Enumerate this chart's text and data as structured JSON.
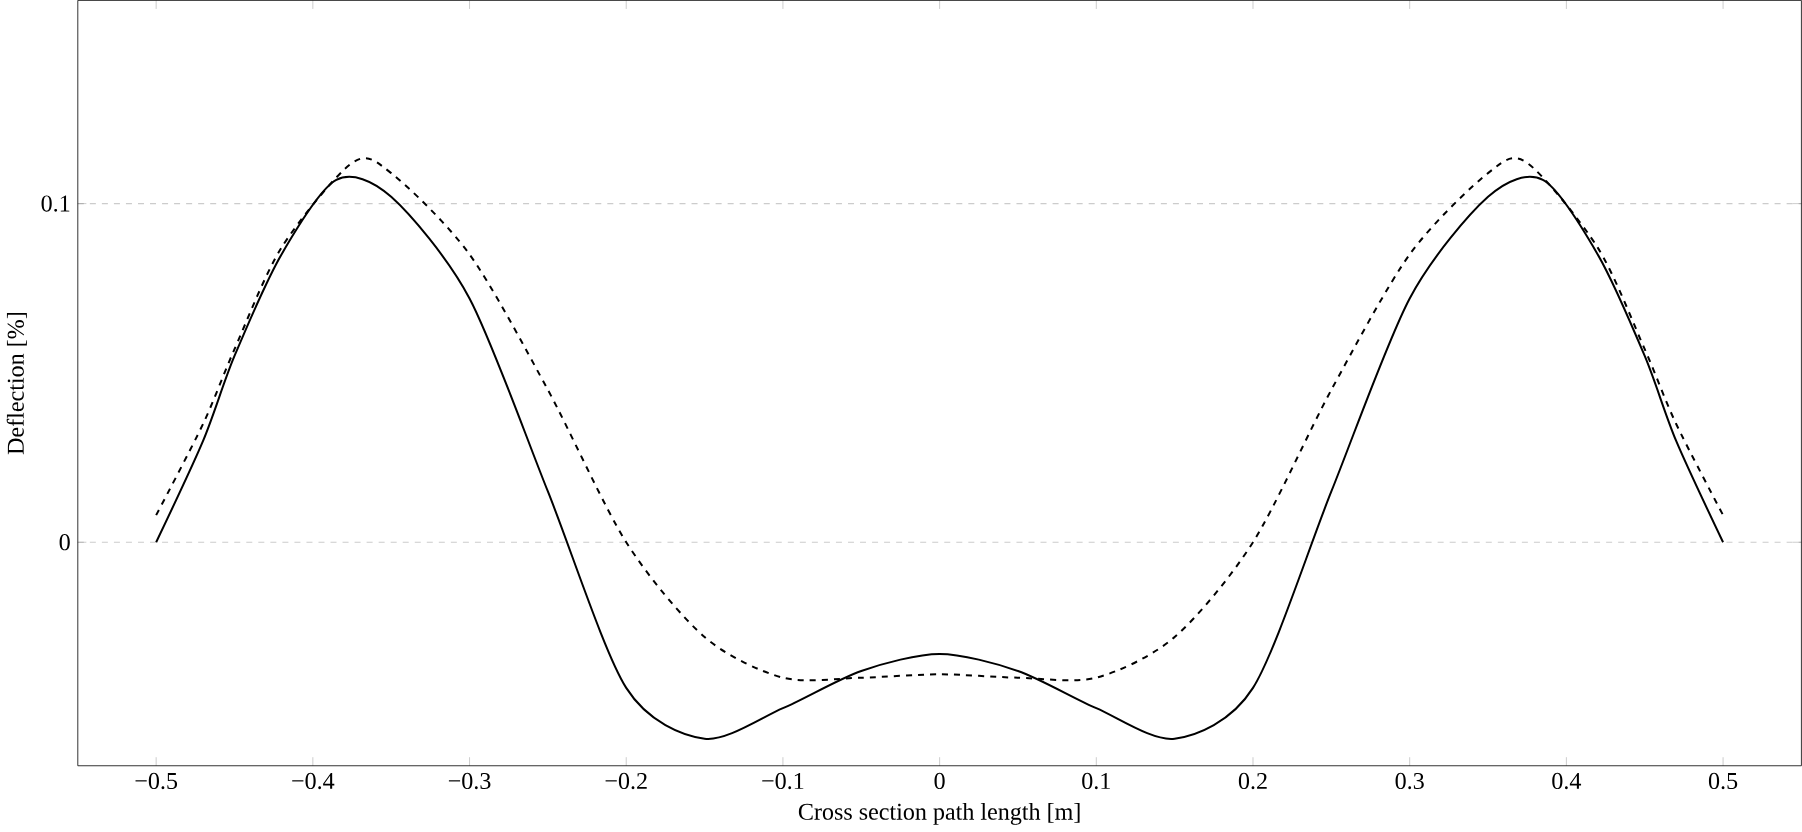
{
  "chart_data": {
    "type": "line",
    "xlabel": "Cross section path length [m]",
    "ylabel": "Deflection [%]",
    "xlim": [
      -0.55,
      0.55
    ],
    "ylim": [
      -0.066,
      0.16
    ],
    "xticks": [
      {
        "value": -0.5,
        "label": "−0.5"
      },
      {
        "value": -0.4,
        "label": "−0.4"
      },
      {
        "value": -0.3,
        "label": "−0.3"
      },
      {
        "value": -0.2,
        "label": "−0.2"
      },
      {
        "value": -0.1,
        "label": "−0.1"
      },
      0,
      0.1,
      0.2,
      0.3,
      0.4,
      0.5
    ],
    "yticks": [
      0,
      0.1
    ],
    "grid": "y",
    "marker": "none",
    "series": [
      {
        "color": "#000000",
        "line_style": "solid",
        "x": [
          -0.5,
          -0.47,
          -0.45,
          -0.42,
          -0.385,
          -0.35,
          -0.3,
          -0.25,
          -0.2,
          -0.15,
          -0.1,
          -0.05,
          0,
          0.05,
          0.1,
          0.15,
          0.2,
          0.25,
          0.3,
          0.35,
          0.385,
          0.42,
          0.45,
          0.47,
          0.5
        ],
        "values": [
          0,
          0.03,
          0.055,
          0.085,
          0.107,
          0.102,
          0.072,
          0.015,
          -0.043,
          -0.058,
          -0.049,
          -0.038,
          -0.033,
          -0.038,
          -0.049,
          -0.058,
          -0.043,
          0.015,
          0.072,
          0.102,
          0.107,
          0.085,
          0.055,
          0.03,
          0
        ]
      },
      {
        "color": "#000000",
        "line_style": "dashed",
        "x": [
          -0.5,
          -0.47,
          -0.45,
          -0.42,
          -0.375,
          -0.35,
          -0.3,
          -0.25,
          -0.2,
          -0.15,
          -0.1,
          -0.05,
          0,
          0.05,
          0.1,
          0.15,
          0.2,
          0.25,
          0.3,
          0.35,
          0.375,
          0.42,
          0.45,
          0.47,
          0.5
        ],
        "values": [
          0.008,
          0.035,
          0.057,
          0.087,
          0.112,
          0.109,
          0.085,
          0.045,
          0.0,
          -0.028,
          -0.04,
          -0.04,
          -0.039,
          -0.04,
          -0.04,
          -0.028,
          0.0,
          0.045,
          0.085,
          0.109,
          0.112,
          0.087,
          0.057,
          0.035,
          0.008
        ]
      }
    ]
  }
}
